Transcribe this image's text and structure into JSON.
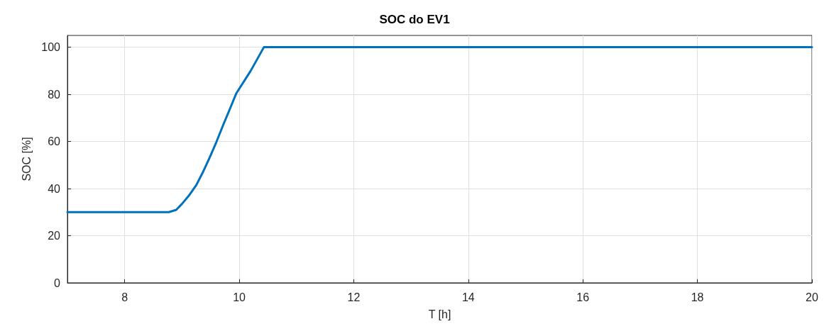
{
  "chart_data": {
    "type": "line",
    "title": "SOC do EV1",
    "xlabel": "T [h]",
    "ylabel": "SOC [%]",
    "x": [
      7,
      8.77,
      8.9,
      9.0,
      9.12,
      9.25,
      9.36,
      9.48,
      9.6,
      9.72,
      9.84,
      9.95,
      10.2,
      10.43,
      20
    ],
    "series": [
      {
        "color": "#0072bd",
        "values": [
          30,
          30,
          31,
          33.5,
          37,
          41.5,
          46.7,
          53,
          59.7,
          67,
          74,
          80.5,
          90,
          100,
          100
        ]
      }
    ],
    "xlim": [
      7,
      20
    ],
    "xticks": [
      8,
      10,
      12,
      14,
      16,
      18,
      20
    ],
    "ylim": [
      0,
      105
    ],
    "yticks": [
      0,
      20,
      40,
      60,
      80,
      100
    ],
    "grid": true,
    "marker": "none",
    "line_style": "solid"
  }
}
